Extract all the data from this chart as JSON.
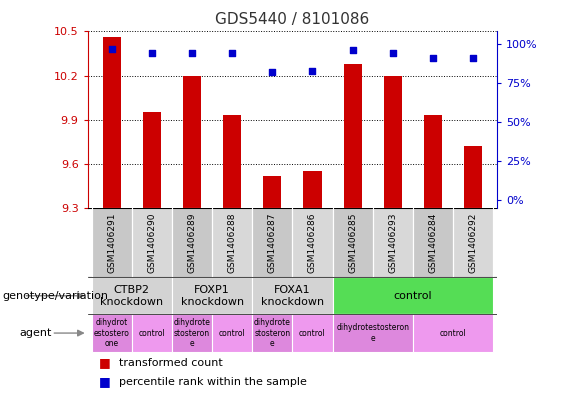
{
  "title": "GDS5440 / 8101086",
  "samples": [
    "GSM1406291",
    "GSM1406290",
    "GSM1406289",
    "GSM1406288",
    "GSM1406287",
    "GSM1406286",
    "GSM1406285",
    "GSM1406293",
    "GSM1406284",
    "GSM1406292"
  ],
  "transformed_count": [
    10.46,
    9.95,
    10.2,
    9.93,
    9.52,
    9.55,
    10.28,
    10.2,
    9.93,
    9.72
  ],
  "percentile_rank": [
    97,
    94,
    94,
    94,
    82,
    83,
    96,
    94,
    91,
    91
  ],
  "ylim": [
    9.3,
    10.5
  ],
  "yticks": [
    9.3,
    9.6,
    9.9,
    10.2,
    10.5
  ],
  "y2ticks": [
    0,
    25,
    50,
    75,
    100
  ],
  "bar_color": "#cc0000",
  "scatter_color": "#0000cc",
  "left_axis_color": "#cc0000",
  "right_axis_color": "#0000cc",
  "genotype_groups": [
    {
      "label": "CTBP2\nknockdown",
      "start": 0,
      "end": 2,
      "color": "#d3d3d3"
    },
    {
      "label": "FOXP1\nknockdown",
      "start": 2,
      "end": 4,
      "color": "#d3d3d3"
    },
    {
      "label": "FOXA1\nknockdown",
      "start": 4,
      "end": 6,
      "color": "#d3d3d3"
    },
    {
      "label": "control",
      "start": 6,
      "end": 10,
      "color": "#55dd55"
    }
  ],
  "agent_groups": [
    {
      "label": "dihydrot\nestostero\none",
      "start": 0,
      "end": 1,
      "color": "#dd88dd"
    },
    {
      "label": "control",
      "start": 1,
      "end": 2,
      "color": "#ee99ee"
    },
    {
      "label": "dihydrote\nstosteron\ne",
      "start": 2,
      "end": 3,
      "color": "#dd88dd"
    },
    {
      "label": "control",
      "start": 3,
      "end": 4,
      "color": "#ee99ee"
    },
    {
      "label": "dihydrote\nstosteron\ne",
      "start": 4,
      "end": 5,
      "color": "#dd88dd"
    },
    {
      "label": "control",
      "start": 5,
      "end": 6,
      "color": "#ee99ee"
    },
    {
      "label": "dihydrotestosteron\ne",
      "start": 6,
      "end": 8,
      "color": "#dd88dd"
    },
    {
      "label": "control",
      "start": 8,
      "end": 10,
      "color": "#ee99ee"
    }
  ],
  "legend_red_label": "transformed count",
  "legend_blue_label": "percentile rank within the sample",
  "genotype_label": "genotype/variation",
  "agent_label": "agent",
  "bar_width": 0.45,
  "sample_box_color": "#c8c8c8",
  "sample_box_alt_color": "#d8d8d8"
}
